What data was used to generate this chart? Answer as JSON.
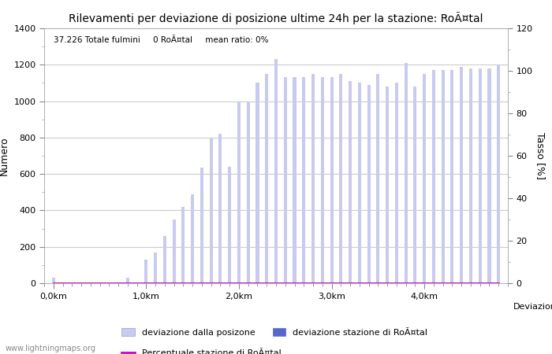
{
  "title": "Rilevamenti per deviazione di posizione ultime 24h per la stazione: RoÃ¤tal",
  "subtitle": "37.226 Totale fulmini     0 RoÃ¤tal     mean ratio: 0%",
  "xlabel": "Deviazioni",
  "ylabel_left": "Numero",
  "ylabel_right": "Tasso [%]",
  "watermark": "www.lightningmaps.org",
  "legend_bar1": "deviazione dalla posizone",
  "legend_bar2": "deviazione stazione di RoÃ¤tal",
  "legend_line": "Percentuale stazione di RoÃ¤tal",
  "bar_color_light": "#c8caee",
  "bar_color_dark": "#5566cc",
  "line_color": "#cc00cc",
  "background_color": "#ffffff",
  "grid_color": "#cccccc",
  "ylim_left": [
    0,
    1400
  ],
  "ylim_right": [
    0,
    120
  ],
  "yticks_left": [
    0,
    200,
    400,
    600,
    800,
    1000,
    1200,
    1400
  ],
  "yticks_right": [
    0,
    20,
    40,
    60,
    80,
    100,
    120
  ],
  "xtick_labels": [
    "0,0km",
    "1,0km",
    "2,0km",
    "3,0km",
    "4,0km"
  ],
  "bar_values": [
    30,
    2,
    2,
    2,
    2,
    2,
    2,
    2,
    30,
    2,
    130,
    170,
    260,
    350,
    420,
    490,
    635,
    800,
    820,
    640,
    1000,
    1000,
    1100,
    1150,
    1230,
    1130,
    1130,
    1130,
    1150,
    1130,
    1130,
    1150,
    1110,
    1100,
    1090,
    1150,
    1080,
    1100,
    1210,
    1080,
    1150,
    1170,
    1170,
    1170,
    1190,
    1180,
    1180,
    1180,
    1200
  ],
  "station_values": [
    0,
    0,
    0,
    0,
    0,
    0,
    0,
    0,
    0,
    0,
    0,
    0,
    0,
    0,
    0,
    0,
    0,
    0,
    0,
    0,
    0,
    0,
    0,
    0,
    0,
    0,
    0,
    0,
    0,
    0,
    0,
    0,
    0,
    0,
    0,
    0,
    0,
    0,
    0,
    0,
    0,
    0,
    0,
    0,
    0,
    0,
    0,
    0,
    0
  ],
  "percentage_values": [
    0,
    0,
    0,
    0,
    0,
    0,
    0,
    0,
    0,
    0,
    0,
    0,
    0,
    0,
    0,
    0,
    0,
    0,
    0,
    0,
    0,
    0,
    0,
    0,
    0,
    0,
    0,
    0,
    0,
    0,
    0,
    0,
    0,
    0,
    0,
    0,
    0,
    0,
    0,
    0,
    0,
    0,
    0,
    0,
    0,
    0,
    0,
    0,
    0
  ]
}
